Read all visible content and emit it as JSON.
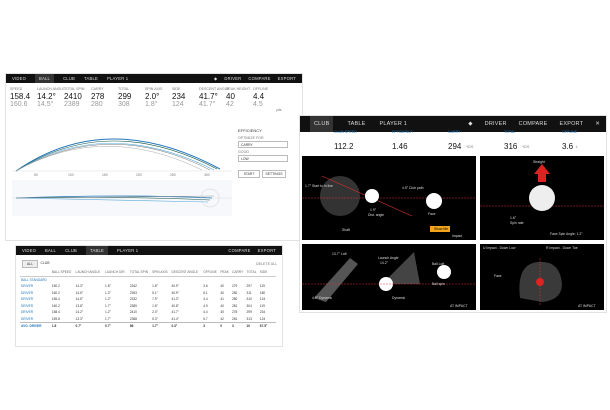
{
  "window_a": {
    "tabs": [
      "VIDEO",
      "BALL",
      "CLUB",
      "TABLE",
      "PLAYER 1"
    ],
    "active_tab": "BALL",
    "right": [
      "DRIVER",
      "COMPARE",
      "EXPORT"
    ],
    "stats": [
      {
        "label": "SPEED",
        "value": "158.4",
        "prev": "160.6"
      },
      {
        "label": "LAUNCH ANGLE",
        "value": "14.2°",
        "prev": "14.5°"
      },
      {
        "label": "TOTAL SPIN",
        "value": "2410",
        "prev": "2389"
      },
      {
        "label": "CARRY",
        "value": "278",
        "prev": "280"
      },
      {
        "label": "TOTAL",
        "value": "299",
        "prev": "308"
      },
      {
        "label": "SPIN AXIS",
        "value": "2.0°",
        "prev": "1.8°"
      },
      {
        "label": "SIDE",
        "value": "234",
        "prev": "124"
      },
      {
        "label": "DESCENT ANGLE",
        "value": "41.7°",
        "prev": "41.7°"
      },
      {
        "label": "PEAK HEIGHT",
        "value": "40",
        "prev": "42"
      },
      {
        "label": "OFFLINE",
        "value": "4.4",
        "prev": "4.5"
      }
    ],
    "unit_label": "yds",
    "sidebar": {
      "heading": "EFFICIENCY",
      "optimize_label": "OPTIMIZE FOR",
      "optimize_value": "CARRY",
      "good_label": "GOOD",
      "good_value": "LOW",
      "start": "START",
      "settings": "SETTINGS"
    },
    "axis_ticks": [
      "50",
      "100",
      "150",
      "200",
      "250",
      "300"
    ]
  },
  "window_b": {
    "tabs": [
      "VIDEO",
      "BALL",
      "CLUB",
      "TABLE",
      "PLAYER 1"
    ],
    "active_tab": "TABLE",
    "right": [
      "COMPARE",
      "EXPORT"
    ],
    "filter": [
      "ALL",
      "CLUB"
    ],
    "delete": "DELETE ALL",
    "columns": [
      "",
      "BALL SPEED",
      "LAUNCH ANGLE",
      "LAUNCH DIR.",
      "TOTAL SPIN",
      "SPIN AXIS",
      "DESCENT ANGLE",
      "OFFLINE",
      "PEAK",
      "CARRY",
      "TOTAL",
      "SIDE",
      "",
      "",
      ""
    ],
    "rows": [
      [
        "BALL STANDARD",
        "",
        "",
        "",
        "",
        "",
        "",
        "",
        "",
        "",
        "",
        "",
        "",
        "",
        ""
      ],
      [
        "DRIVER",
        "150.2",
        "14.3°",
        "1.8°",
        "2342",
        "1.8°",
        "40.9°",
        "3.6",
        "40",
        "279",
        "297",
        "119",
        "",
        "",
        ""
      ],
      [
        "DRIVER",
        "160.2",
        "14.6°",
        "1.3°",
        "2353",
        "5.1°",
        "40.9°",
        "6.1",
        "40",
        "282",
        "311",
        "180",
        "",
        "",
        ""
      ],
      [
        "DRIVER",
        "156.4",
        "14.5°",
        "1.2°",
        "2332",
        "7.9°",
        "41.3°",
        "4.4",
        "41",
        "280",
        "310",
        "124",
        "",
        "",
        ""
      ],
      [
        "DRIVER",
        "160.2",
        "13.8°",
        "1.7°",
        "2389",
        "1.6°",
        "40.8°",
        "4.9",
        "40",
        "281",
        "304",
        "119",
        "",
        "",
        ""
      ],
      [
        "DRIVER",
        "158.4",
        "14.2°",
        "1.2°",
        "2410",
        "2.0°",
        "41.7°",
        "4.4",
        "40",
        "278",
        "299",
        "234",
        "",
        "",
        ""
      ],
      [
        "DRIVER",
        "159.8",
        "13.3°",
        "1.7°",
        "2388",
        "5.3°",
        "41.4°",
        "6.7",
        "42",
        "281",
        "313",
        "124",
        "",
        "",
        ""
      ],
      [
        "AVG. DRIVER",
        "1.8",
        "0.7°",
        "0.7°",
        "86",
        "1.7°",
        "0.3°",
        "3",
        "0",
        "3",
        "10",
        "67.5°",
        "",
        "",
        ""
      ]
    ]
  },
  "window_c": {
    "tabs": [
      "CLUB",
      "TABLE",
      "PLAYER 1"
    ],
    "active_tab": "CLUB",
    "right": [
      "DRIVER",
      "COMPARE",
      "EXPORT"
    ],
    "stats": [
      {
        "label": "CLUB SPEED",
        "value": "112.2"
      },
      {
        "label": "EFFICIENCY",
        "value": "1.46"
      },
      {
        "label": "CARRY",
        "value": "294",
        "unit": "YDS"
      },
      {
        "label": "TOTAL",
        "value": "316",
        "unit": "YDS"
      },
      {
        "label": "OFFLINE",
        "value": "3.6",
        "unit": "L"
      }
    ],
    "panel_tl": {
      "labels": [
        "1.7° Start to In line",
        "4.5° Club path",
        "1.9°",
        "Dist. angle",
        "Face",
        "Shaft",
        "Impact"
      ],
      "btn": "Show Me"
    },
    "panel_tr": {
      "labels": [
        "Straight",
        "1.6°",
        "Spin rate",
        "Face Spin Angle: 1.2°"
      ]
    },
    "panel_bl": {
      "labels": [
        "13.7° Loft",
        "4.9° Dynamic",
        "Launch Angle",
        "14.2°",
        "Ball Loft",
        "Ball spin",
        "Dynamic",
        "AT IMPACT"
      ]
    },
    "panel_br": {
      "labels": [
        "U Impact - Down Low",
        "R Impact - Down Toe",
        "Face",
        "AT IMPACT"
      ]
    }
  }
}
